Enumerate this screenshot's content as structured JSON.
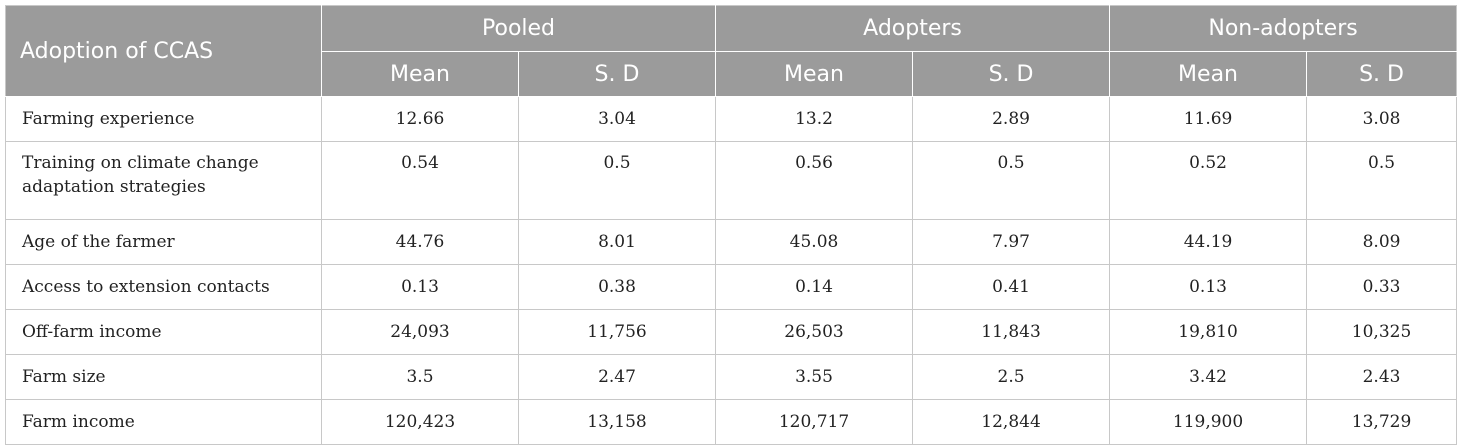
{
  "table": {
    "corner_label": "Adoption of CCAS",
    "groups": [
      "Pooled",
      "Adopters",
      "Non-adopters"
    ],
    "subheaders": [
      "Mean",
      "S. D",
      "Mean",
      "S. D",
      "Mean",
      "S. D"
    ],
    "rows": [
      {
        "label": "Farming experience",
        "values": [
          "12.66",
          "3.04",
          "13.2",
          "2.89",
          "11.69",
          "3.08"
        ]
      },
      {
        "label": "Training on climate change adaptation strategies",
        "values": [
          "0.54",
          "0.5",
          "0.56",
          "0.5",
          "0.52",
          "0.5"
        ]
      },
      {
        "label": "Age of the farmer",
        "values": [
          "44.76",
          "8.01",
          "45.08",
          "7.97",
          "44.19",
          "8.09"
        ]
      },
      {
        "label": "Access to extension contacts",
        "values": [
          "0.13",
          "0.38",
          "0.14",
          "0.41",
          "0.13",
          "0.33"
        ]
      },
      {
        "label": "Off-farm income",
        "values": [
          "24,093",
          "11,756",
          "26,503",
          "11,843",
          "19,810",
          "10,325"
        ]
      },
      {
        "label": "Farm size",
        "values": [
          "3.5",
          "2.47",
          "3.55",
          "2.5",
          "3.42",
          "2.43"
        ]
      },
      {
        "label": "Farm income",
        "values": [
          "120,423",
          "13,158",
          "120,717",
          "12,844",
          "119,900",
          "13,729"
        ]
      }
    ]
  }
}
